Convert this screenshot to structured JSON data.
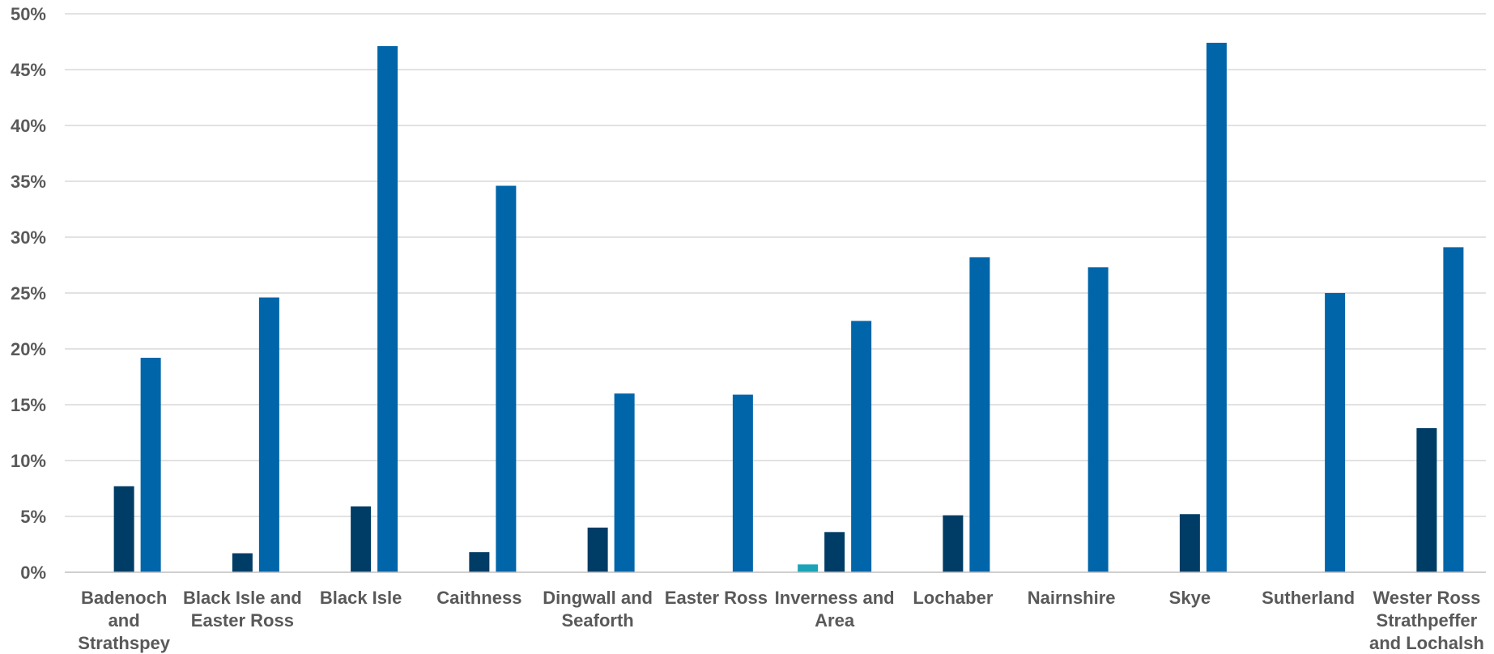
{
  "chart_data": {
    "type": "bar",
    "title": "",
    "xlabel": "",
    "ylabel": "",
    "ylim": [
      0,
      50
    ],
    "yticks": [
      "0%",
      "5%",
      "10%",
      "15%",
      "20%",
      "25%",
      "30%",
      "35%",
      "40%",
      "45%",
      "50%"
    ],
    "grid": true,
    "legend": "none",
    "categories": [
      [
        "Badenoch",
        "and",
        "Strathspey"
      ],
      [
        "Black Isle and",
        "Easter Ross"
      ],
      [
        "Black Isle"
      ],
      [
        "Caithness"
      ],
      [
        "Dingwall and",
        "Seaforth"
      ],
      [
        "Easter Ross"
      ],
      [
        "Inverness and",
        "Area"
      ],
      [
        "Lochaber"
      ],
      [
        "Nairnshire"
      ],
      [
        "Skye"
      ],
      [
        "Sutherland"
      ],
      [
        "Wester Ross",
        "Strathpeffer",
        "and Lochalsh"
      ]
    ],
    "series": [
      {
        "color": "#1ba3b8",
        "values": [
          0,
          0,
          0,
          0,
          0,
          0,
          0.7,
          0,
          0,
          0,
          0,
          0
        ]
      },
      {
        "color": "#003d66",
        "values": [
          7.7,
          1.7,
          5.9,
          1.8,
          4.0,
          0,
          3.6,
          5.1,
          0,
          5.2,
          0,
          12.9
        ]
      },
      {
        "color": "#0065a9",
        "values": [
          19.2,
          24.6,
          47.1,
          34.6,
          16.0,
          15.9,
          22.5,
          28.2,
          27.3,
          47.4,
          25.0,
          29.1
        ]
      }
    ]
  }
}
